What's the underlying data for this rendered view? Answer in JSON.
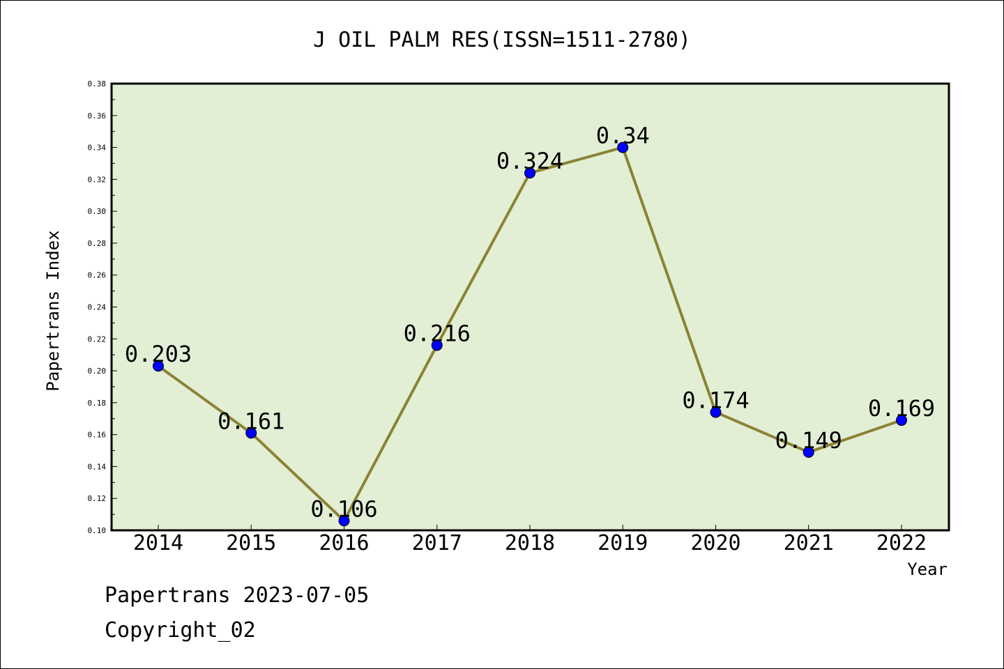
{
  "chart_data": {
    "type": "line",
    "title": "J OIL PALM RES(ISSN=1511-2780)",
    "xlabel": "Year",
    "ylabel": "Papertrans Index",
    "categories": [
      "2014",
      "2015",
      "2016",
      "2017",
      "2018",
      "2019",
      "2020",
      "2021",
      "2022"
    ],
    "values": [
      0.203,
      0.161,
      0.106,
      0.216,
      0.324,
      0.34,
      0.174,
      0.149,
      0.169
    ],
    "data_labels": [
      "0.203",
      "0.161",
      "0.106",
      "0.216",
      "0.324",
      "0.34",
      "0.174",
      "0.149",
      "0.169"
    ],
    "ylim": [
      0.1,
      0.38
    ],
    "yticks": [
      "0.10",
      "0.12",
      "0.14",
      "0.16",
      "0.18",
      "0.20",
      "0.22",
      "0.24",
      "0.26",
      "0.28",
      "0.30",
      "0.32",
      "0.34",
      "0.36",
      "0.38"
    ],
    "ytick_values": [
      0.1,
      0.12,
      0.14,
      0.16,
      0.18,
      0.2,
      0.22,
      0.24,
      0.26,
      0.28,
      0.3,
      0.32,
      0.34,
      0.36,
      0.38
    ],
    "grid": false,
    "legend": "none",
    "colors": {
      "plot_background": "#e2efd5",
      "line": "#8c8236",
      "marker": "#0000ff"
    }
  },
  "footer": {
    "line1": "Papertrans 2023-07-05",
    "line2": "Copyright_02"
  }
}
